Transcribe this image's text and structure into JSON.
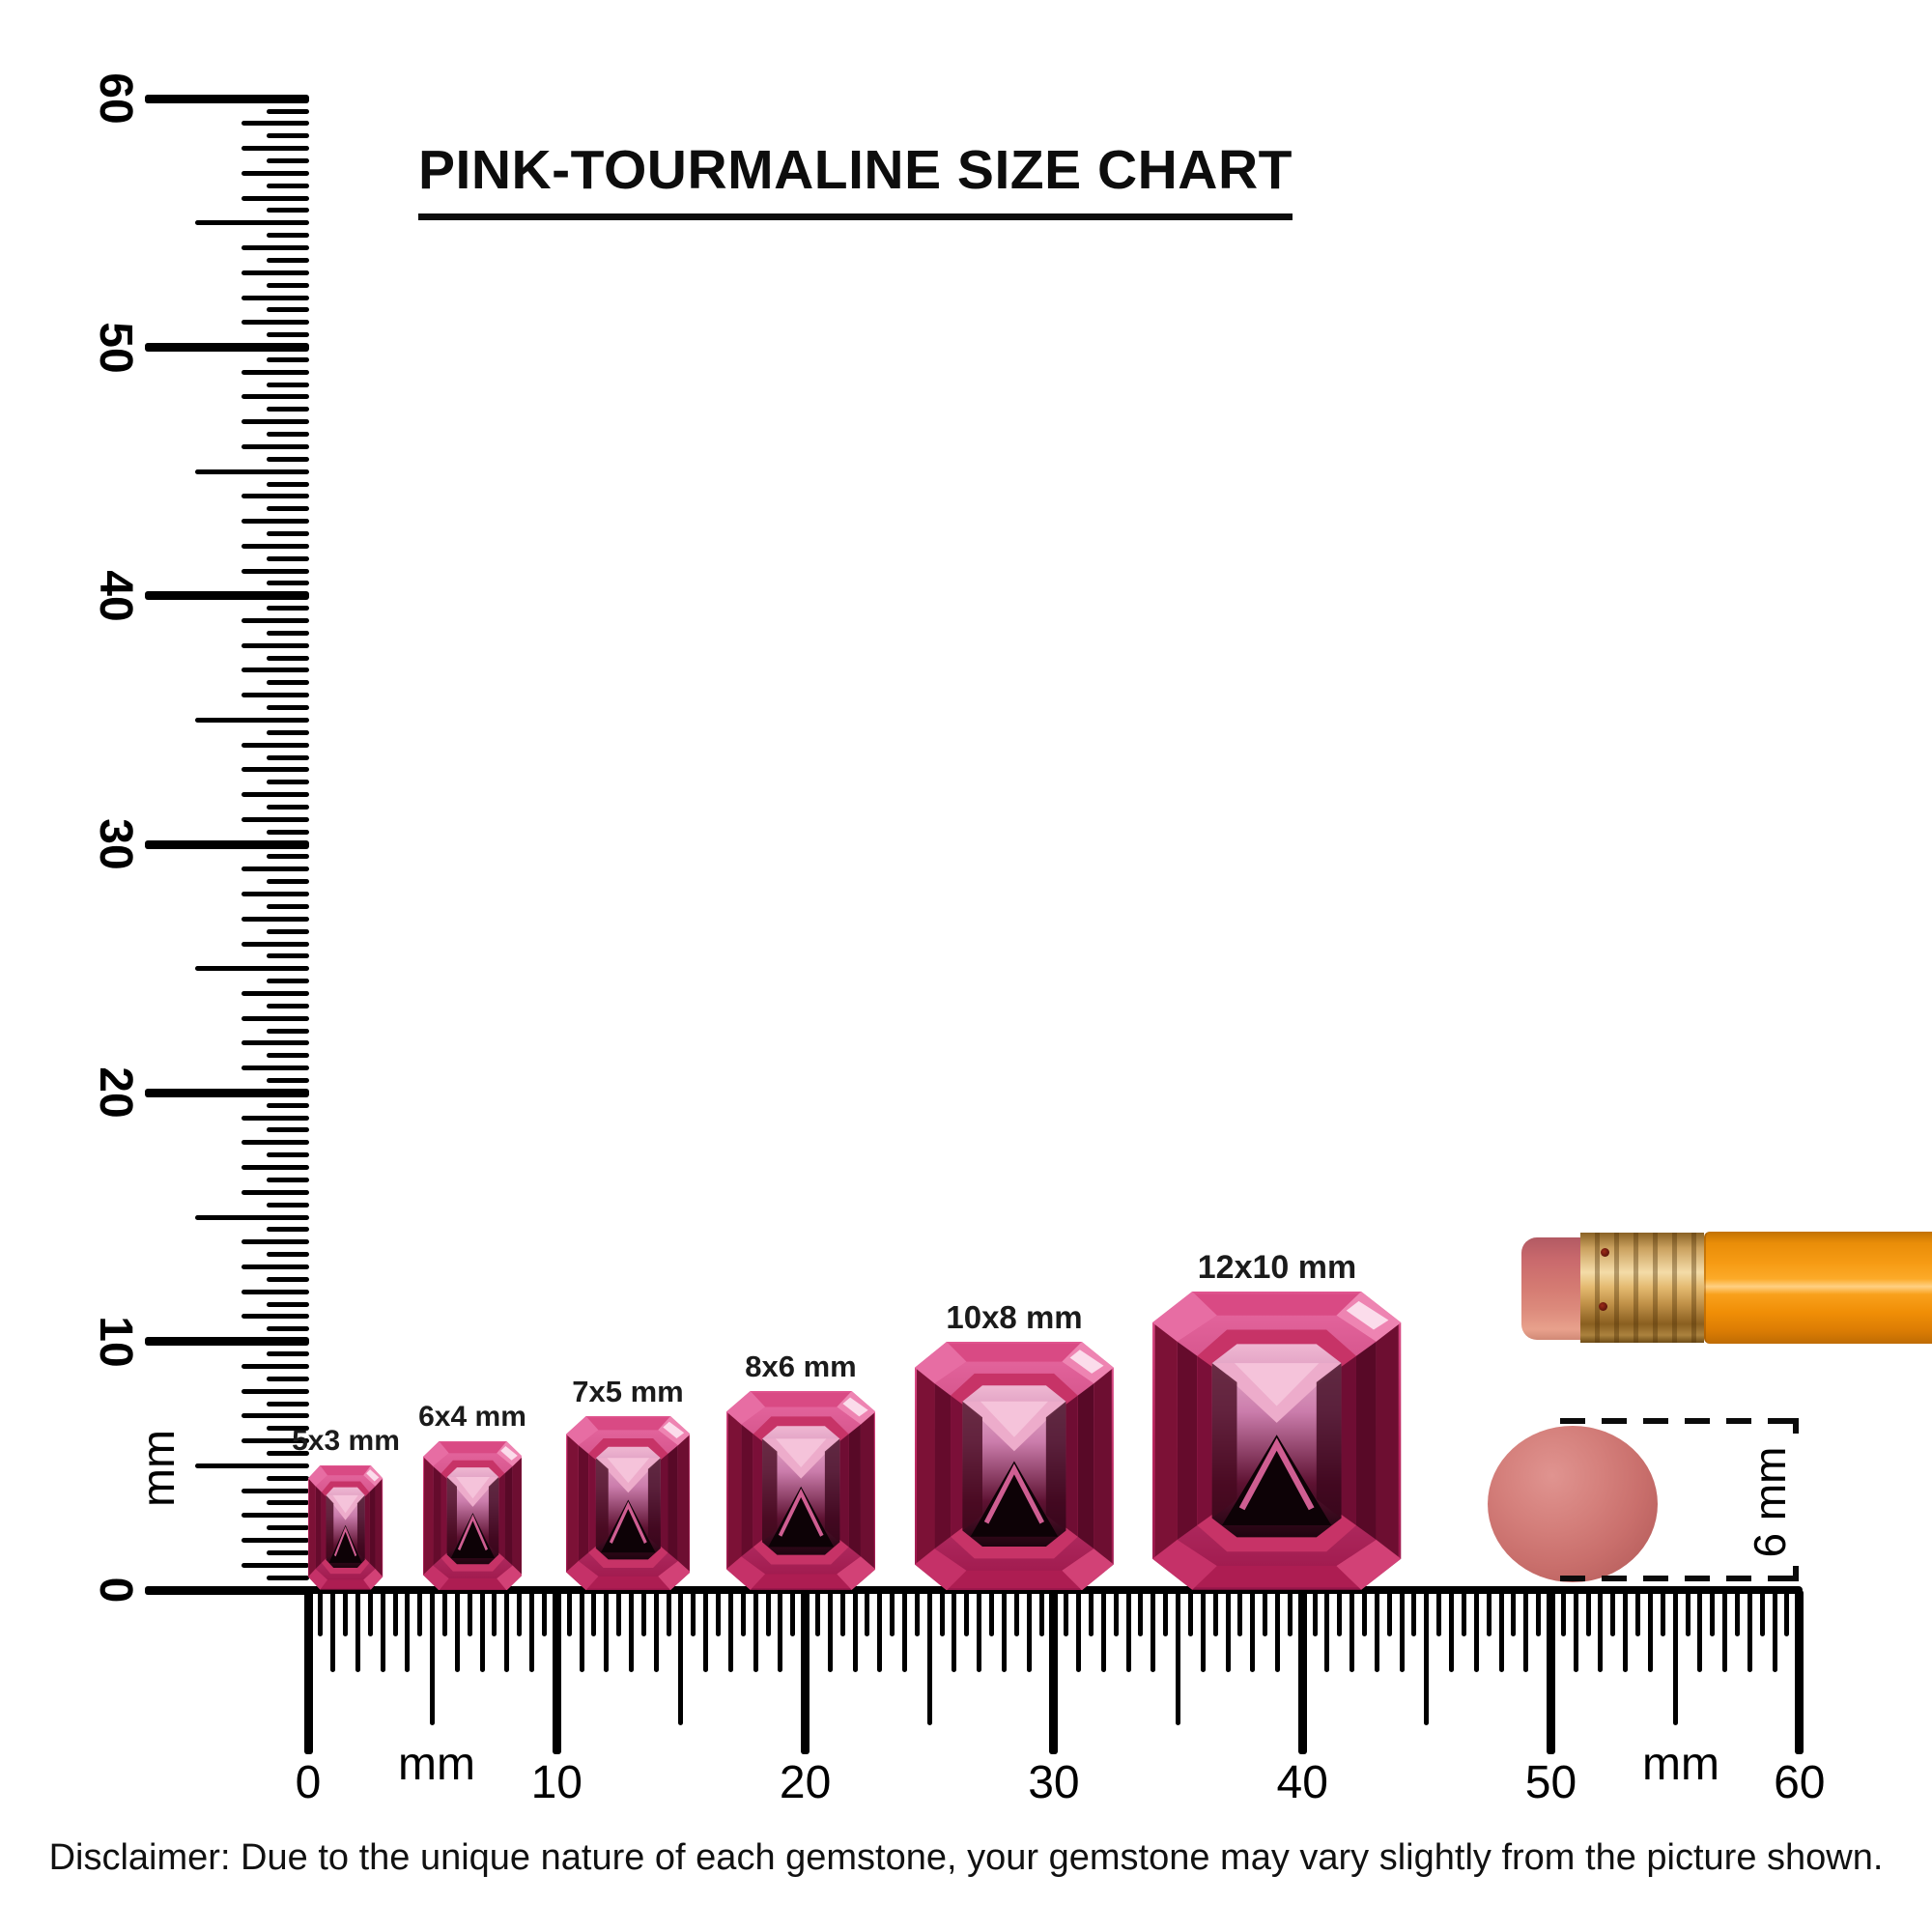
{
  "title": {
    "text": "PINK-TOURMALINE SIZE CHART"
  },
  "vertical_ruler": {
    "unit_label": "mm",
    "tick_labels": [
      "60",
      "50",
      "40",
      "30",
      "20",
      "10",
      "0"
    ],
    "range_mm": [
      0,
      60
    ]
  },
  "horizontal_ruler": {
    "unit_label_left": "mm",
    "unit_label_right": "mm",
    "tick_labels": [
      "0",
      "10",
      "20",
      "30",
      "40",
      "50",
      "60"
    ],
    "range_mm": [
      0,
      60
    ]
  },
  "gems": [
    {
      "label": "5x3 mm",
      "width_mm": 3,
      "length_mm": 5
    },
    {
      "label": "6x4 mm",
      "width_mm": 4,
      "length_mm": 6
    },
    {
      "label": "7x5 mm",
      "width_mm": 5,
      "length_mm": 7
    },
    {
      "label": "8x6 mm",
      "width_mm": 6,
      "length_mm": 8
    },
    {
      "label": "10x8 mm",
      "width_mm": 8,
      "length_mm": 10
    },
    {
      "label": "12x10 mm",
      "width_mm": 10,
      "length_mm": 12
    }
  ],
  "eraser_measure": {
    "label": "6 mm"
  },
  "disclaimer": {
    "text": "Disclaimer: Due to the unique nature of each gemstone, your gemstone may vary slightly from the picture shown."
  },
  "colors": {
    "gem_bright_pink": "#d94a84",
    "gem_mid_magenta": "#bc2760",
    "gem_deep_crimson": "#7c1136",
    "gem_pale_pink": "#f5c3da",
    "gem_shadow": "#1e040f",
    "pencil_body_orange": "#f69b14",
    "pencil_ferrule_brass": "#e3b96f",
    "pencil_eraser_salmon": "#d47a72",
    "eraser_circle_salmon": "#c96f6c",
    "ink_black": "#000000"
  }
}
